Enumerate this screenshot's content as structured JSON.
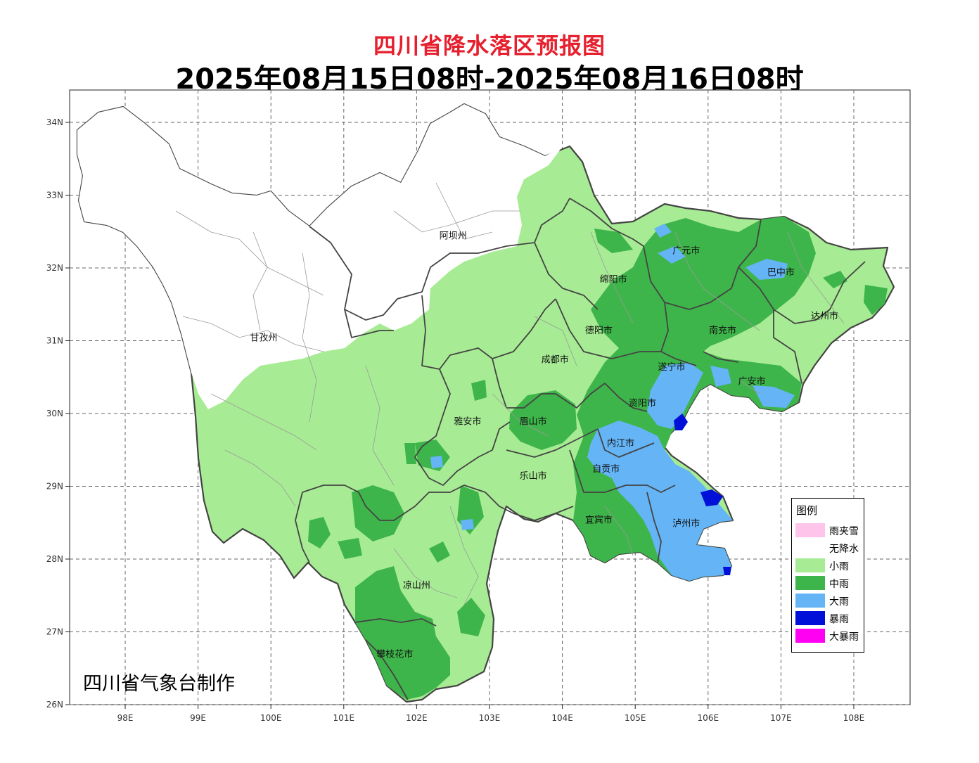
{
  "title": "四川省降水落区预报图",
  "subtitle": "2025年08月15日08时-2025年08月16日08时",
  "credit": "四川省气象台制作",
  "x_ticks": [
    "98E",
    "99E",
    "100E",
    "101E",
    "102E",
    "103E",
    "104E",
    "105E",
    "106E",
    "107E",
    "108E"
  ],
  "y_ticks": [
    "34N",
    "33N",
    "32N",
    "31N",
    "30N",
    "29N",
    "28N",
    "27N",
    "26N"
  ],
  "regions": [
    {
      "name": "阿坝州",
      "lon": 102.5,
      "lat": 32.4
    },
    {
      "name": "甘孜州",
      "lon": 99.9,
      "lat": 31.0
    },
    {
      "name": "广元市",
      "lon": 105.7,
      "lat": 32.2
    },
    {
      "name": "巴中市",
      "lon": 107.0,
      "lat": 31.9
    },
    {
      "name": "绵阳市",
      "lon": 104.7,
      "lat": 31.8
    },
    {
      "name": "达州市",
      "lon": 107.6,
      "lat": 31.3
    },
    {
      "name": "德阳市",
      "lon": 104.5,
      "lat": 31.1
    },
    {
      "name": "南充市",
      "lon": 106.2,
      "lat": 31.1
    },
    {
      "name": "成都市",
      "lon": 103.9,
      "lat": 30.7
    },
    {
      "name": "遂宁市",
      "lon": 105.5,
      "lat": 30.6
    },
    {
      "name": "广安市",
      "lon": 106.6,
      "lat": 30.4
    },
    {
      "name": "资阳市",
      "lon": 105.1,
      "lat": 30.1
    },
    {
      "name": "雅安市",
      "lon": 102.7,
      "lat": 29.85
    },
    {
      "name": "眉山市",
      "lon": 103.6,
      "lat": 29.85
    },
    {
      "name": "内江市",
      "lon": 104.8,
      "lat": 29.55
    },
    {
      "name": "自贡市",
      "lon": 104.6,
      "lat": 29.2
    },
    {
      "name": "乐山市",
      "lon": 103.6,
      "lat": 29.1
    },
    {
      "name": "宜宾市",
      "lon": 104.5,
      "lat": 28.5
    },
    {
      "name": "泸州市",
      "lon": 105.7,
      "lat": 28.45
    },
    {
      "name": "凉山州",
      "lon": 102.0,
      "lat": 27.6
    },
    {
      "name": "攀枝花市",
      "lon": 101.7,
      "lat": 26.65
    }
  ],
  "legend": {
    "title": "图例",
    "items": [
      {
        "label": "雨夹雪",
        "color": "#ffc4ea"
      },
      {
        "label": "无降水",
        "color": "#ffffff"
      },
      {
        "label": "小雨",
        "color": "#a7ec94"
      },
      {
        "label": "中雨",
        "color": "#3eb54a"
      },
      {
        "label": "大雨",
        "color": "#64b4f6"
      },
      {
        "label": "暴雨",
        "color": "#0010d8"
      },
      {
        "label": "大暴雨",
        "color": "#ff00f2"
      }
    ]
  }
}
